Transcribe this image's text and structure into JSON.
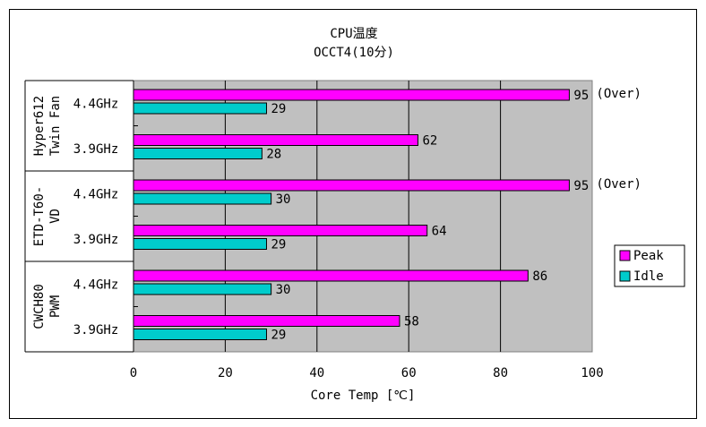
{
  "chart_data": {
    "type": "bar",
    "orientation": "horizontal",
    "title": "CPU温度",
    "subtitle": "OCCT4(10分)",
    "xlabel": "Core Temp [℃]",
    "xlim": [
      0,
      100
    ],
    "xticks": [
      0,
      20,
      40,
      60,
      80,
      100
    ],
    "grid": true,
    "legend_position": "right",
    "groups": [
      {
        "label_lines": [
          "Hyper612",
          "Twin Fan"
        ],
        "categories": [
          "4.4GHz",
          "3.9GHz"
        ]
      },
      {
        "label_lines": [
          "ETD-T60-",
          "VD"
        ],
        "categories": [
          "4.4GHz",
          "3.9GHz"
        ]
      },
      {
        "label_lines": [
          "CWCH80",
          "PWM"
        ],
        "categories": [
          "4.4GHz",
          "3.9GHz"
        ]
      }
    ],
    "series": [
      {
        "name": "Peak",
        "color": "#ff00ff",
        "values": [
          95,
          62,
          95,
          64,
          86,
          58
        ],
        "value_labels": [
          "95",
          "62",
          "95",
          "64",
          "86",
          "58"
        ]
      },
      {
        "name": "Idle",
        "color": "#00cccc",
        "values": [
          29,
          28,
          30,
          29,
          30,
          29
        ],
        "value_labels": [
          "29",
          "28",
          "30",
          "29",
          "30",
          "29"
        ]
      }
    ],
    "annotations": [
      "(Over)",
      "",
      "(Over)",
      "",
      "",
      ""
    ],
    "plot_background": "#c0c0c0"
  }
}
